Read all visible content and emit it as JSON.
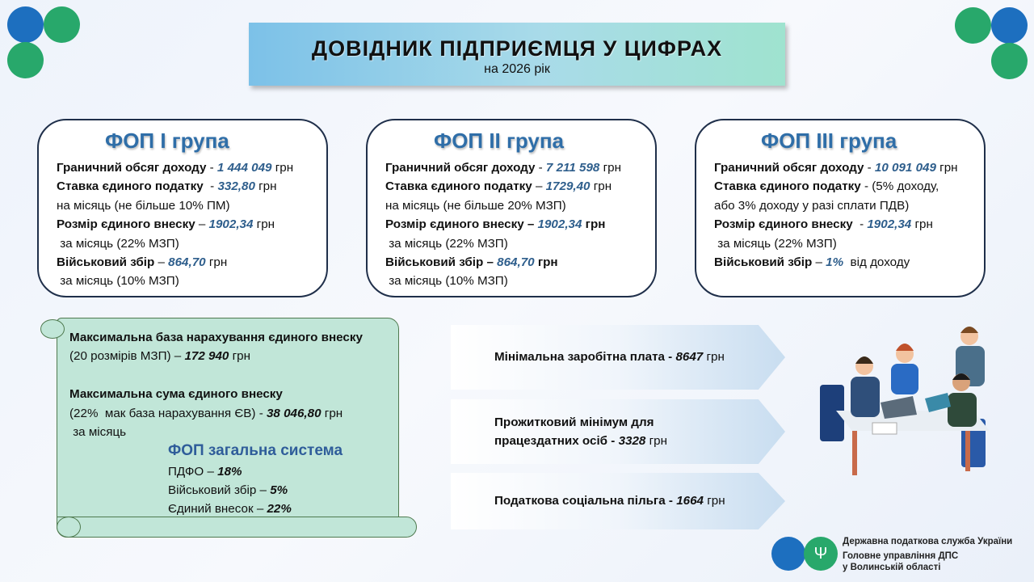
{
  "header": {
    "title": "ДОВІДНИК ПІДПРИЄМЦЯ У ЦИФРАХ",
    "subtitle": "на 2026 рік"
  },
  "colors": {
    "brand_blue": "#1d6fbf",
    "brand_green": "#28a86b",
    "value_blue": "#2e5e8c",
    "heading_blue": "#2f6ea8",
    "scroll_green": "#c1e6d8"
  },
  "cards": [
    {
      "title": "ФОП I група",
      "lines": [
        [
          {
            "t": "Граничний обсяг доходу",
            "s": "b"
          },
          {
            "t": " - ",
            "s": "n"
          },
          {
            "t": "1 444 049",
            "s": "v"
          },
          {
            "t": " грн",
            "s": "n"
          }
        ],
        [
          {
            "t": "Ставка єдиного податку",
            "s": "b"
          },
          {
            "t": "  - ",
            "s": "n"
          },
          {
            "t": "332,80",
            "s": "v"
          },
          {
            "t": " грн",
            "s": "n"
          }
        ],
        [
          {
            "t": "на місяць (не більше 10% ПМ)",
            "s": "n"
          }
        ],
        [
          {
            "t": "Розмір єдиного внеску",
            "s": "b"
          },
          {
            "t": " – ",
            "s": "n"
          },
          {
            "t": "1902,34",
            "s": "v"
          },
          {
            "t": " грн",
            "s": "n"
          }
        ],
        [
          {
            "t": " за місяць (22% МЗП)",
            "s": "n"
          }
        ],
        [
          {
            "t": "Військовий збір",
            "s": "b"
          },
          {
            "t": " – ",
            "s": "n"
          },
          {
            "t": "864,70",
            "s": "v"
          },
          {
            "t": " грн",
            "s": "n"
          }
        ],
        [
          {
            "t": " за місяць (10% МЗП)",
            "s": "n"
          }
        ]
      ]
    },
    {
      "title": "ФОП II група",
      "lines": [
        [
          {
            "t": "Граничний обсяг доходу",
            "s": "b"
          },
          {
            "t": " - ",
            "s": "n"
          },
          {
            "t": "7 211 598",
            "s": "v"
          },
          {
            "t": " грн",
            "s": "n"
          }
        ],
        [
          {
            "t": "Ставка єдиного податку",
            "s": "b"
          },
          {
            "t": " – ",
            "s": "n"
          },
          {
            "t": "1729,40",
            "s": "v"
          },
          {
            "t": " грн",
            "s": "n"
          }
        ],
        [
          {
            "t": "на місяць (не більше 20% МЗП)",
            "s": "n"
          }
        ],
        [
          {
            "t": "Розмір єдиного внеску – ",
            "s": "b"
          },
          {
            "t": "1902,34",
            "s": "v"
          },
          {
            "t": " грн",
            "s": "b"
          }
        ],
        [
          {
            "t": " за місяць (22% МЗП)",
            "s": "n"
          }
        ],
        [
          {
            "t": "Військовий збір – ",
            "s": "b"
          },
          {
            "t": "864,70",
            "s": "v"
          },
          {
            "t": " грн",
            "s": "b"
          }
        ],
        [
          {
            "t": " за місяць (10% МЗП)",
            "s": "n"
          }
        ]
      ]
    },
    {
      "title": "ФОП III група",
      "lines": [
        [
          {
            "t": "Граничний обсяг доходу",
            "s": "b"
          },
          {
            "t": " - ",
            "s": "n"
          },
          {
            "t": "10 091 049",
            "s": "v"
          },
          {
            "t": " грн",
            "s": "n"
          }
        ],
        [
          {
            "t": "Ставка єдиного податку",
            "s": "b"
          },
          {
            "t": " - (5% доходу,",
            "s": "n"
          }
        ],
        [
          {
            "t": "або 3% доходу у разі сплати ПДВ)",
            "s": "n"
          }
        ],
        [
          {
            "t": "Розмір єдиного внеску",
            "s": "b"
          },
          {
            "t": "  - ",
            "s": "n"
          },
          {
            "t": "1902,34",
            "s": "v"
          },
          {
            "t": " грн",
            "s": "n"
          }
        ],
        [
          {
            "t": " за місяць (22% МЗП)",
            "s": "n"
          }
        ],
        [
          {
            "t": "Військовий збір",
            "s": "b"
          },
          {
            "t": " – ",
            "s": "n"
          },
          {
            "t": "1%",
            "s": "v"
          },
          {
            "t": "  від доходу",
            "s": "n"
          }
        ]
      ]
    }
  ],
  "scroll": {
    "lines": [
      [
        {
          "t": "Максимальна база нарахування єдиного внеску",
          "s": "b"
        }
      ],
      [
        {
          "t": "(20 розмірів МЗП) – ",
          "s": "n"
        },
        {
          "t": "172 940",
          "s": "vb"
        },
        {
          "t": " грн",
          "s": "n"
        }
      ],
      [
        {
          "t": " ",
          "s": "n"
        }
      ],
      [
        {
          "t": "Максимальна сума єдиного внеску",
          "s": "b"
        }
      ],
      [
        {
          "t": "(22%  мак база нарахування ЄВ) - ",
          "s": "n"
        },
        {
          "t": "38 046,80",
          "s": "vb"
        },
        {
          "t": " грн",
          "s": "n"
        }
      ],
      [
        {
          "t": " за місяць",
          "s": "n"
        }
      ]
    ],
    "general_title": "ФОП загальна система",
    "general_lines": [
      [
        {
          "t": "ПДФО – ",
          "s": "n"
        },
        {
          "t": "18%",
          "s": "vb"
        }
      ],
      [
        {
          "t": "Військовий збір – ",
          "s": "n"
        },
        {
          "t": "5%",
          "s": "vb"
        }
      ],
      [
        {
          "t": "Єдиний внесок – ",
          "s": "n"
        },
        {
          "t": "22%",
          "s": "vb"
        }
      ]
    ]
  },
  "arrows": [
    {
      "lines": [
        [
          {
            "t": "Мінімальна заробітна плата - ",
            "s": "b"
          },
          {
            "t": "8647",
            "s": "vb"
          },
          {
            "t": " грн",
            "s": "n"
          }
        ]
      ]
    },
    {
      "lines": [
        [
          {
            "t": "Прожитковий мінімум для",
            "s": "b"
          }
        ],
        [
          {
            "t": "працездатних осіб - ",
            "s": "b"
          },
          {
            "t": "3328",
            "s": "vb"
          },
          {
            "t": " грн",
            "s": "n"
          }
        ]
      ]
    },
    {
      "lines": [
        [
          {
            "t": "Податкова соціальна пільга - ",
            "s": "b"
          },
          {
            "t": "1664",
            "s": "vb"
          },
          {
            "t": " грн",
            "s": "n"
          }
        ]
      ]
    }
  ],
  "footer": {
    "line1": "Державна податкова служба України",
    "line2": "Головне управління ДПС",
    "line3": "у Волинській області",
    "emblem_icon": "trident-icon"
  }
}
